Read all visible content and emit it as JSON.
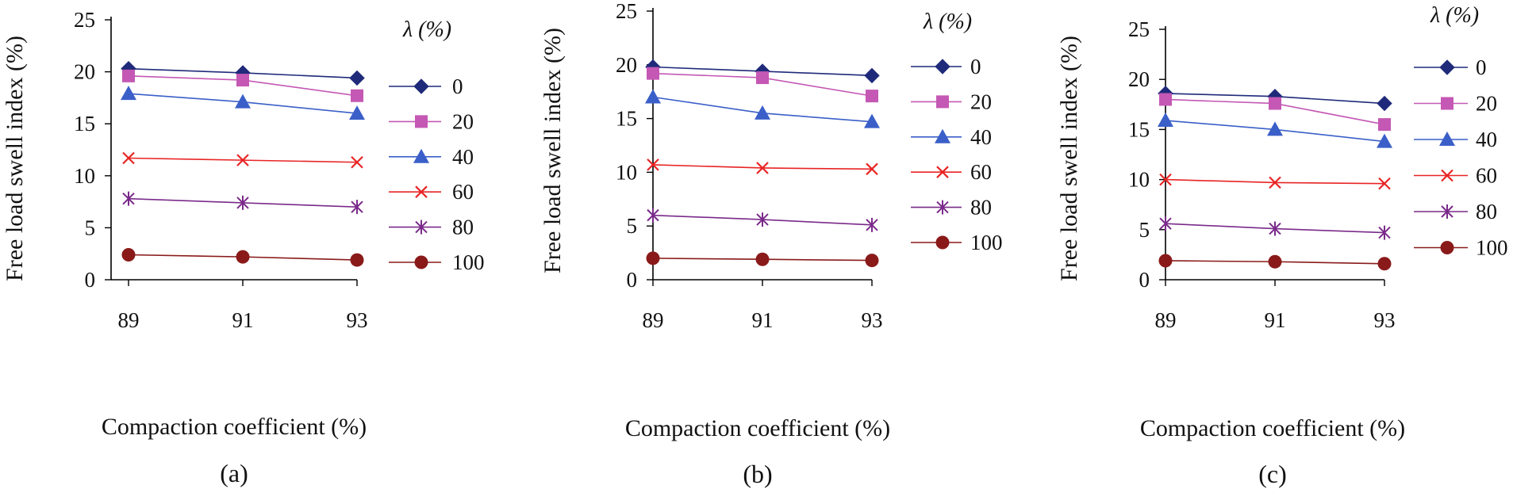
{
  "chart_data": [
    {
      "type": "line",
      "panel_label": "(a)",
      "xlabel": "Compaction coefficient (%)",
      "ylabel": "Free load swell index (%)",
      "categories": [
        "89",
        "91",
        "93"
      ],
      "ylim": [
        0,
        25
      ],
      "yticks": [
        "0",
        "5",
        "10",
        "15",
        "20",
        "25"
      ],
      "legend_title": "λ (%)",
      "legend_position": "right",
      "series": [
        {
          "name": "0",
          "marker": "diamond",
          "color": "#1f2a7a",
          "values": [
            20.3,
            19.9,
            19.4
          ]
        },
        {
          "name": "20",
          "marker": "square",
          "color": "#c458b4",
          "values": [
            19.6,
            19.2,
            17.7
          ]
        },
        {
          "name": "40",
          "marker": "triangle",
          "color": "#3a5fc8",
          "values": [
            17.9,
            17.1,
            16.0
          ]
        },
        {
          "name": "60",
          "marker": "x",
          "color": "#e82424",
          "values": [
            11.7,
            11.5,
            11.3
          ]
        },
        {
          "name": "80",
          "marker": "asterisk",
          "color": "#7a2a8a",
          "values": [
            7.8,
            7.4,
            7.0
          ]
        },
        {
          "name": "100",
          "marker": "circle",
          "color": "#8a1a1a",
          "values": [
            2.4,
            2.2,
            1.9
          ]
        }
      ]
    },
    {
      "type": "line",
      "panel_label": "(b)",
      "xlabel": "Compaction coefficient (%)",
      "ylabel": "Free load swell index (%)",
      "categories": [
        "89",
        "91",
        "93"
      ],
      "ylim": [
        0,
        25
      ],
      "yticks": [
        "0",
        "5",
        "10",
        "15",
        "20",
        "25"
      ],
      "legend_title": "λ (%)",
      "legend_position": "right",
      "series": [
        {
          "name": "0",
          "marker": "diamond",
          "color": "#1f2a7a",
          "values": [
            19.8,
            19.4,
            19.0
          ]
        },
        {
          "name": "20",
          "marker": "square",
          "color": "#c458b4",
          "values": [
            19.2,
            18.8,
            17.1
          ]
        },
        {
          "name": "40",
          "marker": "triangle",
          "color": "#3a5fc8",
          "values": [
            17.0,
            15.5,
            14.7
          ]
        },
        {
          "name": "60",
          "marker": "x",
          "color": "#e82424",
          "values": [
            10.7,
            10.4,
            10.3
          ]
        },
        {
          "name": "80",
          "marker": "asterisk",
          "color": "#7a2a8a",
          "values": [
            6.0,
            5.6,
            5.1
          ]
        },
        {
          "name": "100",
          "marker": "circle",
          "color": "#8a1a1a",
          "values": [
            2.0,
            1.9,
            1.8
          ]
        }
      ]
    },
    {
      "type": "line",
      "panel_label": "(c)",
      "xlabel": "Compaction coefficient (%)",
      "ylabel": "Free load swell index (%)",
      "categories": [
        "89",
        "91",
        "93"
      ],
      "ylim": [
        0,
        25
      ],
      "yticks": [
        "0",
        "5",
        "10",
        "15",
        "20",
        "25"
      ],
      "legend_title": "λ (%)",
      "legend_position": "right",
      "series": [
        {
          "name": "0",
          "marker": "diamond",
          "color": "#1f2a7a",
          "values": [
            18.6,
            18.3,
            17.6
          ]
        },
        {
          "name": "20",
          "marker": "square",
          "color": "#c458b4",
          "values": [
            18.0,
            17.6,
            15.5
          ]
        },
        {
          "name": "40",
          "marker": "triangle",
          "color": "#3a5fc8",
          "values": [
            15.9,
            15.0,
            13.8
          ]
        },
        {
          "name": "60",
          "marker": "x",
          "color": "#e82424",
          "values": [
            10.0,
            9.7,
            9.6
          ]
        },
        {
          "name": "80",
          "marker": "asterisk",
          "color": "#7a2a8a",
          "values": [
            5.6,
            5.1,
            4.7
          ]
        },
        {
          "name": "100",
          "marker": "circle",
          "color": "#8a1a1a",
          "values": [
            1.9,
            1.8,
            1.6
          ]
        }
      ]
    }
  ]
}
